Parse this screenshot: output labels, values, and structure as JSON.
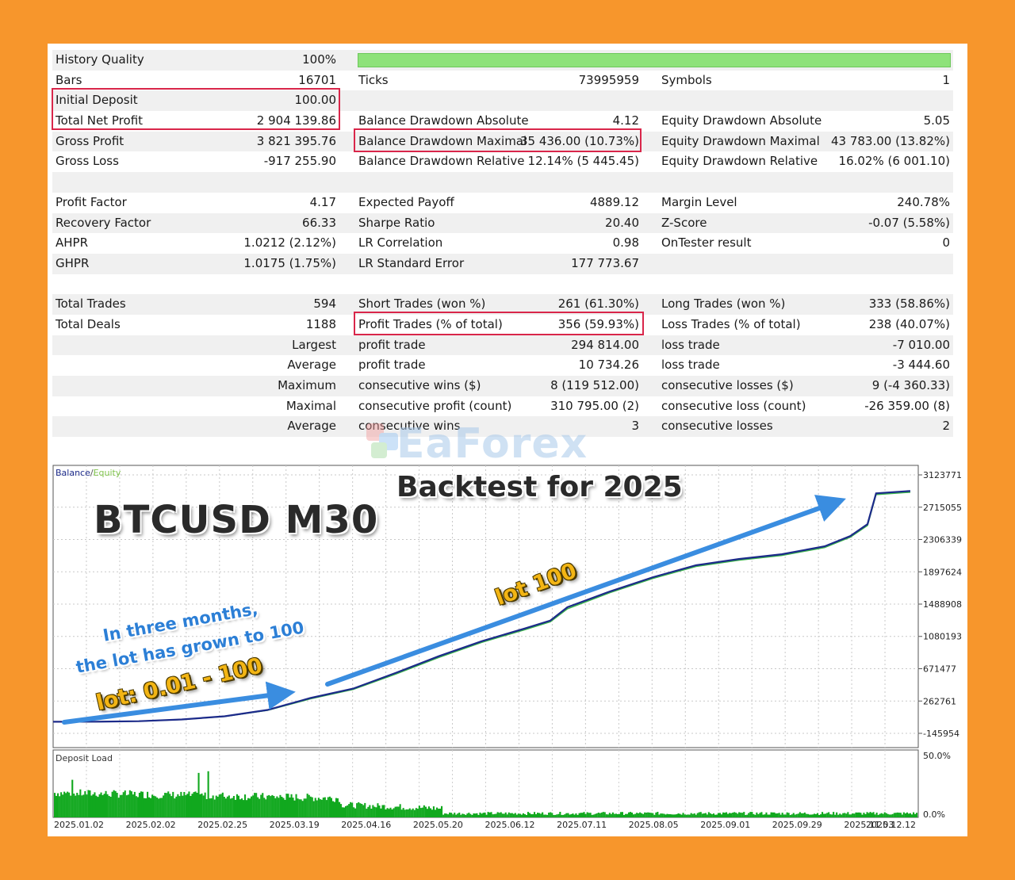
{
  "report": {
    "rows": [
      {
        "l1": "History Quality",
        "v1": "100%",
        "bar": true
      },
      {
        "l1": "Bars",
        "v1": "16701",
        "l2": "Ticks",
        "v2": "73995959",
        "l3": "Symbols",
        "v3": "1"
      },
      {
        "l1": "Initial Deposit",
        "v1": "100.00"
      },
      {
        "l1": "Total Net Profit",
        "v1": "2 904 139.86",
        "l2": "Balance Drawdown Absolute",
        "v2": "4.12",
        "l3": "Equity Drawdown Absolute",
        "v3": "5.05"
      },
      {
        "l1": "Gross Profit",
        "v1": "3 821 395.76",
        "l2": "Balance Drawdown Maximal",
        "v2": "35 436.00 (10.73%)",
        "l3": "Equity Drawdown Maximal",
        "v3": "43 783.00 (13.82%)"
      },
      {
        "l1": "Gross Loss",
        "v1": "-917 255.90",
        "l2": "Balance Drawdown Relative",
        "v2": "12.14% (5 445.45)",
        "l3": "Equity Drawdown Relative",
        "v3": "16.02% (6 001.10)"
      },
      {},
      {
        "l1": "Profit Factor",
        "v1": "4.17",
        "l2": "Expected Payoff",
        "v2": "4889.12",
        "l3": "Margin Level",
        "v3": "240.78%"
      },
      {
        "l1": "Recovery Factor",
        "v1": "66.33",
        "l2": "Sharpe Ratio",
        "v2": "20.40",
        "l3": "Z-Score",
        "v3": "-0.07 (5.58%)"
      },
      {
        "l1": "AHPR",
        "v1": "1.0212 (2.12%)",
        "l2": "LR Correlation",
        "v2": "0.98",
        "l3": "OnTester result",
        "v3": "0"
      },
      {
        "l1": "GHPR",
        "v1": "1.0175 (1.75%)",
        "l2": "LR Standard Error",
        "v2": "177 773.67"
      },
      {},
      {
        "l1": "Total Trades",
        "v1": "594",
        "l2": "Short Trades (won %)",
        "v2": "261 (61.30%)",
        "l3": "Long Trades (won %)",
        "v3": "333 (58.86%)"
      },
      {
        "l1": "Total Deals",
        "v1": "1188",
        "l2": "Profit Trades (% of total)",
        "v2": "356 (59.93%)",
        "l3": "Loss Trades (% of total)",
        "v3": "238 (40.07%)"
      },
      {
        "r1": "Largest",
        "l2": "profit trade",
        "v2": "294 814.00",
        "l3": "loss trade",
        "v3": "-7 010.00"
      },
      {
        "r1": "Average",
        "l2": "profit trade",
        "v2": "10 734.26",
        "l3": "loss trade",
        "v3": "-3 444.60"
      },
      {
        "r1": "Maximum",
        "l2": "consecutive wins ($)",
        "v2": "8 (119 512.00)",
        "l3": "consecutive losses ($)",
        "v3": "9 (-4 360.33)"
      },
      {
        "r1": "Maximal",
        "l2": "consecutive profit (count)",
        "v2": "310 795.00 (2)",
        "l3": "consecutive loss (count)",
        "v3": "-26 359.00 (8)"
      },
      {
        "r1": "Average",
        "l2": "consecutive wins",
        "v2": "3",
        "l3": "consecutive losses",
        "v3": "2"
      }
    ]
  },
  "watermark": "EaForex",
  "overlays": {
    "symbol": "BTCUSD M30",
    "backtest": "Backtest for 2025",
    "note_line1": "In three months,",
    "note_line2": "the lot has grown to 100",
    "lot_range": "lot: 0.01 - 100",
    "lot_final": "lot 100"
  },
  "chart_data": [
    {
      "type": "line",
      "legend": {
        "balance": "Balance",
        "separator": "/",
        "equity": "Equity"
      },
      "y_ticks": [
        3123771,
        2715055,
        2306339,
        1897624,
        1488908,
        1080193,
        671477,
        262761,
        -145954
      ],
      "ylim": [
        -145954,
        3123771
      ],
      "x": [
        0,
        0.05,
        0.1,
        0.15,
        0.2,
        0.25,
        0.3,
        0.35,
        0.4,
        0.45,
        0.5,
        0.55,
        0.58,
        0.6,
        0.65,
        0.7,
        0.75,
        0.8,
        0.85,
        0.9,
        0.93,
        0.95,
        0.96,
        1.0
      ],
      "series": [
        {
          "name": "Balance",
          "values": [
            100,
            1500,
            8000,
            30000,
            70000,
            150000,
            300000,
            420000,
            620000,
            830000,
            1020000,
            1180000,
            1280000,
            1450000,
            1650000,
            1830000,
            1980000,
            2060000,
            2120000,
            2220000,
            2350000,
            2500000,
            2890000,
            2920000
          ]
        },
        {
          "name": "Equity",
          "values": [
            100,
            1450,
            7800,
            29000,
            68000,
            145000,
            290000,
            410000,
            605000,
            815000,
            1005000,
            1165000,
            1265000,
            1430000,
            1635000,
            1815000,
            1965000,
            2045000,
            2105000,
            2205000,
            2335000,
            2485000,
            2875000,
            2905000
          ]
        }
      ],
      "colors": {
        "balance": "#1c2a8a",
        "equity": "#3bb54a",
        "grid": "#c8c8c8"
      }
    },
    {
      "type": "bar",
      "title": "Deposit Load",
      "y_ticks": [
        "50.0%",
        "0.0%"
      ],
      "ylim": [
        0,
        50
      ],
      "x_ticks": [
        "2025.01.02",
        "2025.02.02",
        "2025.02.25",
        "2025.03.19",
        "2025.04.16",
        "2025.05.20",
        "2025.06.12",
        "2025.07.11",
        "2025.08.05",
        "2025.09.01",
        "2025.09.29",
        "2025.11.03",
        "2025.12.12"
      ],
      "colors": {
        "bar": "#11a81e"
      }
    }
  ],
  "colors": {
    "background": "#f7962c",
    "highlight": "#d9264a",
    "quality_bar": "#8ee27a",
    "note_blue": "#2c7fd6",
    "note_gold": "#f3b514"
  }
}
